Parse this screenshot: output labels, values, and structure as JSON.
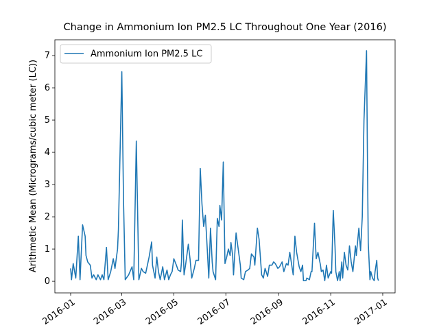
{
  "chart_data": {
    "type": "line",
    "title": "Change in Ammonium Ion PM2.5 LC Throughout One Year (2016)",
    "y_label": "Arithmetic Mean (Micrograms/cubic meter (LC))",
    "legend": "upper left",
    "xlim": [
      -18.5,
      380.5
    ],
    "xticks": [
      {
        "value": 0,
        "label": "2016-01"
      },
      {
        "value": 60,
        "label": "2016-03"
      },
      {
        "value": 121,
        "label": "2016-05"
      },
      {
        "value": 182,
        "label": "2016-07"
      },
      {
        "value": 244,
        "label": "2016-09"
      },
      {
        "value": 305,
        "label": "2016-11"
      },
      {
        "value": 366,
        "label": "2017-01"
      }
    ],
    "ylim": [
      -0.36,
      7.49
    ],
    "yticks": [
      0,
      1,
      2,
      3,
      4,
      5,
      6,
      7
    ],
    "series": [
      {
        "name": "Ammonium Ion PM2.5 LC",
        "color": "#1f77b4",
        "x": [
          0,
          1,
          3,
          6,
          9,
          11,
          14,
          17,
          18,
          20,
          23,
          25,
          27,
          30,
          32,
          35,
          37,
          39,
          42,
          44,
          47,
          50,
          52,
          55,
          56,
          60,
          62,
          64,
          68,
          72,
          74,
          77,
          79,
          80,
          83,
          85,
          88,
          92,
          95,
          96,
          99,
          101,
          103,
          105,
          108,
          110,
          113,
          115,
          117,
          119,
          121,
          124,
          126,
          129,
          130,
          131,
          133,
          135,
          138,
          140,
          142,
          145,
          147,
          150,
          152,
          154,
          156,
          158,
          160,
          162,
          164,
          166,
          167,
          170,
          172,
          174,
          175,
          177,
          179,
          181,
          183,
          185,
          187,
          188,
          190,
          191,
          194,
          196,
          199,
          200,
          203,
          205,
          208,
          210,
          212,
          215,
          216,
          219,
          221,
          224,
          226,
          228,
          231,
          233,
          236,
          238,
          240,
          243,
          245,
          248,
          250,
          253,
          255,
          257,
          259,
          261,
          263,
          265,
          268,
          270,
          272,
          273,
          276,
          277,
          280,
          282,
          283,
          285,
          286,
          287,
          288,
          290,
          293,
          294,
          296,
          298,
          300,
          302,
          305,
          306,
          308,
          310,
          311,
          313,
          315,
          316,
          318,
          319,
          321,
          323,
          325,
          327,
          329,
          331,
          334,
          335,
          338,
          339,
          340,
          342,
          344,
          347,
          348,
          349,
          351,
          352,
          354,
          356,
          357,
          359,
          360,
          361
        ],
        "values": [
          0.4,
          0.05,
          0.55,
          0.1,
          1.4,
          0.05,
          1.75,
          1.4,
          0.8,
          0.6,
          0.5,
          0.1,
          0.2,
          0.05,
          0.2,
          0.05,
          0.2,
          0.05,
          1.05,
          0.05,
          0.3,
          0.7,
          0.4,
          1.0,
          1.6,
          6.5,
          2.5,
          0.05,
          0.2,
          0.45,
          0.05,
          4.35,
          1.5,
          0.05,
          0.4,
          0.3,
          0.25,
          0.75,
          1.22,
          0.5,
          0.1,
          0.75,
          0.3,
          0.05,
          0.45,
          0.05,
          0.35,
          0.05,
          0.2,
          0.3,
          0.7,
          0.5,
          0.35,
          0.3,
          0.6,
          1.9,
          0.2,
          0.55,
          1.15,
          0.7,
          0.1,
          0.4,
          0.65,
          0.65,
          3.5,
          2.4,
          1.7,
          2.05,
          1.1,
          0.1,
          1.65,
          0.6,
          0.3,
          0.05,
          1.95,
          1.7,
          2.35,
          1.9,
          3.7,
          0.55,
          0.75,
          1.0,
          0.8,
          1.2,
          0.8,
          0.2,
          1.5,
          1.1,
          0.5,
          0.1,
          0.05,
          0.3,
          0.35,
          0.4,
          0.85,
          0.75,
          0.5,
          1.65,
          1.3,
          0.2,
          0.1,
          0.4,
          0.15,
          0.5,
          0.5,
          0.6,
          0.55,
          0.4,
          0.45,
          0.6,
          0.3,
          0.55,
          0.5,
          0.9,
          0.55,
          0.2,
          1.4,
          0.9,
          0.45,
          0.3,
          0.5,
          0.02,
          0.02,
          0.1,
          0.05,
          0.3,
          0.3,
          1.3,
          1.8,
          1.2,
          0.7,
          0.9,
          0.5,
          0.3,
          0.35,
          0.02,
          0.5,
          0.1,
          0.3,
          0.25,
          2.2,
          1.1,
          0.3,
          0.02,
          0.3,
          0.02,
          0.6,
          0.1,
          0.9,
          0.5,
          0.35,
          1.1,
          0.6,
          0.3,
          1.1,
          0.8,
          1.65,
          1.3,
          0.95,
          2.0,
          5.0,
          7.15,
          4.0,
          1.2,
          0.05,
          0.3,
          0.1,
          0.02,
          0.3,
          0.65,
          0.1,
          0.02
        ]
      }
    ]
  }
}
